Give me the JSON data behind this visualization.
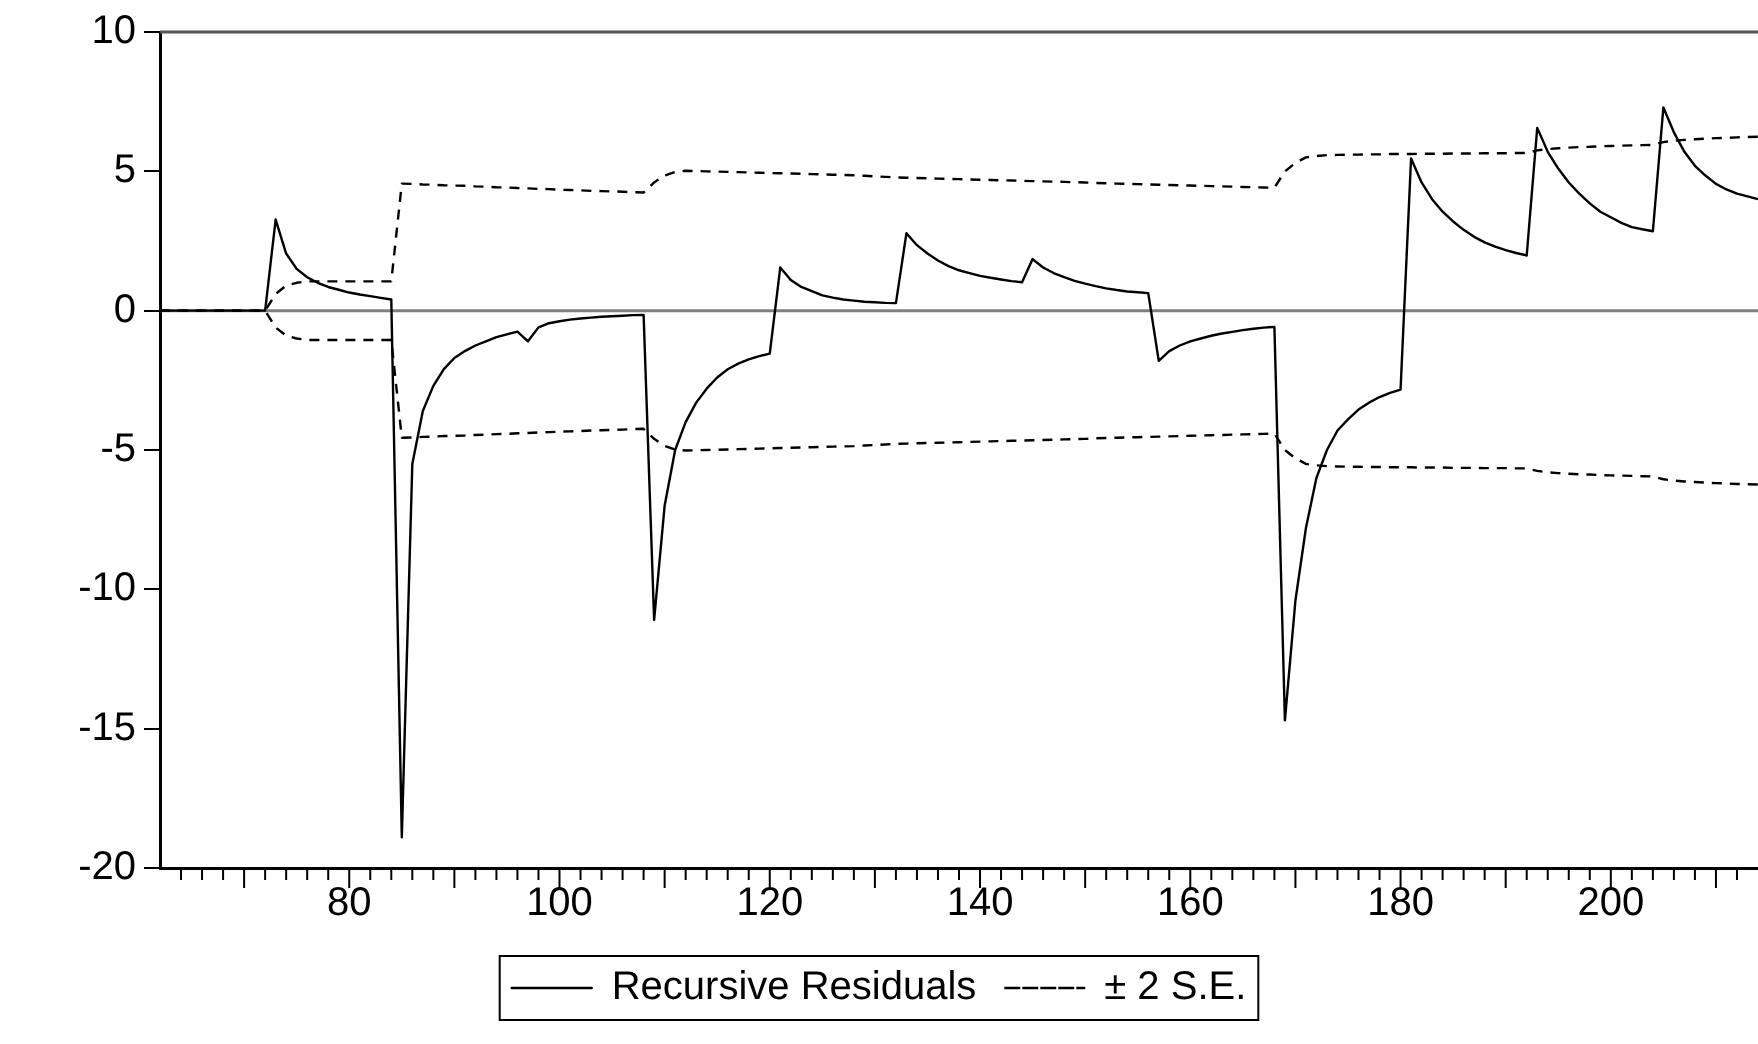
{
  "chart_data": {
    "type": "line",
    "x": [
      62,
      63,
      64,
      65,
      66,
      67,
      68,
      69,
      70,
      71,
      72,
      73,
      74,
      75,
      76,
      77,
      78,
      79,
      80,
      81,
      82,
      83,
      84,
      85,
      86,
      87,
      88,
      89,
      90,
      91,
      92,
      93,
      94,
      95,
      96,
      97,
      98,
      99,
      100,
      101,
      102,
      103,
      104,
      105,
      106,
      107,
      108,
      109,
      110,
      111,
      112,
      113,
      114,
      115,
      116,
      117,
      118,
      119,
      120,
      121,
      122,
      123,
      124,
      125,
      126,
      127,
      128,
      129,
      130,
      131,
      132,
      133,
      134,
      135,
      136,
      137,
      138,
      139,
      140,
      141,
      142,
      143,
      144,
      145,
      146,
      147,
      148,
      149,
      150,
      151,
      152,
      153,
      154,
      155,
      156,
      157,
      158,
      159,
      160,
      161,
      162,
      163,
      164,
      165,
      166,
      167,
      168,
      169,
      170,
      171,
      172,
      173,
      174,
      175,
      176,
      177,
      178,
      179,
      180,
      181,
      182,
      183,
      184,
      185,
      186,
      187,
      188,
      189,
      190,
      191,
      192,
      193,
      194,
      195,
      196,
      197,
      198,
      199,
      200,
      201,
      202,
      203,
      204,
      205,
      206,
      207,
      208,
      209,
      210,
      211,
      212,
      213,
      214
    ],
    "series": [
      {
        "name": "Recursive Residuals",
        "color": "#000000",
        "line_style": "solid",
        "values": [
          0,
          0,
          0,
          0,
          0,
          0,
          0,
          0,
          0,
          0,
          0,
          3.27,
          2.05,
          1.5,
          1.2,
          1.0,
          0.85,
          0.75,
          0.65,
          0.58,
          0.52,
          0.46,
          0.4,
          -18.9,
          -5.5,
          -3.6,
          -2.7,
          -2.1,
          -1.7,
          -1.45,
          -1.25,
          -1.1,
          -0.95,
          -0.85,
          -0.75,
          -1.1,
          -0.6,
          -0.45,
          -0.38,
          -0.32,
          -0.28,
          -0.25,
          -0.22,
          -0.2,
          -0.18,
          -0.16,
          -0.15,
          -11.1,
          -7.0,
          -5.0,
          -4.0,
          -3.3,
          -2.8,
          -2.4,
          -2.1,
          -1.9,
          -1.75,
          -1.63,
          -1.54,
          1.55,
          1.1,
          0.85,
          0.7,
          0.55,
          0.47,
          0.4,
          0.36,
          0.32,
          0.3,
          0.28,
          0.27,
          2.78,
          2.35,
          2.05,
          1.8,
          1.6,
          1.45,
          1.35,
          1.25,
          1.18,
          1.12,
          1.06,
          1.02,
          1.85,
          1.55,
          1.35,
          1.2,
          1.07,
          0.97,
          0.88,
          0.8,
          0.74,
          0.69,
          0.66,
          0.63,
          -1.8,
          -1.45,
          -1.25,
          -1.1,
          -1.0,
          -0.9,
          -0.82,
          -0.76,
          -0.7,
          -0.65,
          -0.61,
          -0.58,
          -14.7,
          -10.4,
          -7.8,
          -6.0,
          -5.0,
          -4.3,
          -3.9,
          -3.55,
          -3.3,
          -3.1,
          -2.95,
          -2.83,
          5.46,
          4.6,
          4.0,
          3.55,
          3.2,
          2.9,
          2.65,
          2.45,
          2.3,
          2.17,
          2.07,
          1.98,
          6.56,
          5.7,
          5.1,
          4.6,
          4.2,
          3.85,
          3.55,
          3.35,
          3.15,
          3.0,
          2.92,
          2.85,
          7.29,
          6.4,
          5.7,
          5.2,
          4.85,
          4.55,
          4.35,
          4.2,
          4.1,
          4.0
        ]
      },
      {
        "name": "± 2 S.E.",
        "color": "#000000",
        "line_style": "dashed",
        "values": [
          0,
          0,
          0,
          0,
          0,
          0,
          0,
          0,
          0,
          0,
          0,
          0.6,
          0.9,
          1.0,
          1.05,
          1.05,
          1.05,
          1.05,
          1.05,
          1.05,
          1.05,
          1.05,
          1.05,
          4.56,
          4.55,
          4.53,
          4.52,
          4.5,
          4.49,
          4.48,
          4.46,
          4.45,
          4.43,
          4.42,
          4.4,
          4.39,
          4.37,
          4.36,
          4.34,
          4.33,
          4.32,
          4.3,
          4.29,
          4.28,
          4.27,
          4.25,
          4.24,
          4.6,
          4.85,
          4.98,
          5.02,
          5.01,
          5.0,
          4.99,
          4.98,
          4.97,
          4.96,
          4.95,
          4.94,
          4.93,
          4.92,
          4.91,
          4.9,
          4.89,
          4.88,
          4.87,
          4.86,
          4.84,
          4.82,
          4.8,
          4.78,
          4.77,
          4.76,
          4.75,
          4.74,
          4.73,
          4.72,
          4.71,
          4.7,
          4.69,
          4.68,
          4.67,
          4.66,
          4.65,
          4.64,
          4.63,
          4.62,
          4.61,
          4.6,
          4.58,
          4.57,
          4.56,
          4.55,
          4.54,
          4.53,
          4.52,
          4.51,
          4.5,
          4.49,
          4.48,
          4.47,
          4.46,
          4.45,
          4.44,
          4.43,
          4.42,
          4.41,
          5.0,
          5.3,
          5.5,
          5.55,
          5.58,
          5.59,
          5.6,
          5.6,
          5.61,
          5.61,
          5.62,
          5.62,
          5.62,
          5.63,
          5.63,
          5.63,
          5.64,
          5.64,
          5.64,
          5.65,
          5.65,
          5.65,
          5.66,
          5.66,
          5.75,
          5.8,
          5.83,
          5.85,
          5.87,
          5.88,
          5.9,
          5.91,
          5.92,
          5.93,
          5.94,
          5.95,
          6.05,
          6.1,
          6.13,
          6.15,
          6.17,
          6.19,
          6.2,
          6.22,
          6.23,
          6.24
        ]
      },
      {
        "color": "#000000",
        "line_style": "dashed",
        "values": [
          0,
          0,
          0,
          0,
          0,
          0,
          0,
          0,
          0,
          0,
          0,
          -0.6,
          -0.9,
          -1.0,
          -1.05,
          -1.05,
          -1.05,
          -1.05,
          -1.05,
          -1.05,
          -1.05,
          -1.05,
          -1.05,
          -4.56,
          -4.55,
          -4.53,
          -4.52,
          -4.5,
          -4.49,
          -4.48,
          -4.46,
          -4.45,
          -4.43,
          -4.42,
          -4.4,
          -4.39,
          -4.37,
          -4.36,
          -4.34,
          -4.33,
          -4.32,
          -4.3,
          -4.29,
          -4.28,
          -4.27,
          -4.25,
          -4.24,
          -4.6,
          -4.85,
          -4.98,
          -5.02,
          -5.01,
          -5.0,
          -4.99,
          -4.98,
          -4.97,
          -4.96,
          -4.95,
          -4.94,
          -4.93,
          -4.92,
          -4.91,
          -4.9,
          -4.89,
          -4.88,
          -4.87,
          -4.86,
          -4.84,
          -4.82,
          -4.8,
          -4.78,
          -4.77,
          -4.76,
          -4.75,
          -4.74,
          -4.73,
          -4.72,
          -4.71,
          -4.7,
          -4.69,
          -4.68,
          -4.67,
          -4.66,
          -4.65,
          -4.64,
          -4.63,
          -4.62,
          -4.61,
          -4.6,
          -4.58,
          -4.57,
          -4.56,
          -4.55,
          -4.54,
          -4.53,
          -4.52,
          -4.51,
          -4.5,
          -4.49,
          -4.48,
          -4.47,
          -4.46,
          -4.45,
          -4.44,
          -4.43,
          -4.42,
          -4.41,
          -5.0,
          -5.3,
          -5.5,
          -5.55,
          -5.58,
          -5.59,
          -5.6,
          -5.6,
          -5.61,
          -5.61,
          -5.62,
          -5.62,
          -5.62,
          -5.63,
          -5.63,
          -5.63,
          -5.64,
          -5.64,
          -5.64,
          -5.65,
          -5.65,
          -5.65,
          -5.66,
          -5.66,
          -5.75,
          -5.8,
          -5.83,
          -5.85,
          -5.87,
          -5.88,
          -5.9,
          -5.91,
          -5.92,
          -5.93,
          -5.94,
          -5.95,
          -6.05,
          -6.1,
          -6.13,
          -6.15,
          -6.17,
          -6.19,
          -6.2,
          -6.22,
          -6.23,
          -6.24
        ]
      }
    ],
    "xlim": [
      62,
      214
    ],
    "xticks": [
      {
        "value": 64,
        "label": null
      },
      {
        "value": 66,
        "label": null
      },
      {
        "value": 68,
        "label": null
      },
      {
        "value": 70,
        "label": null
      },
      {
        "value": 72,
        "label": null
      },
      {
        "value": 74,
        "label": null
      },
      {
        "value": 76,
        "label": null
      },
      {
        "value": 78,
        "label": null
      },
      80,
      {
        "value": 82,
        "label": null
      },
      {
        "value": 84,
        "label": null
      },
      {
        "value": 86,
        "label": null
      },
      {
        "value": 88,
        "label": null
      },
      {
        "value": 90,
        "label": null
      },
      {
        "value": 92,
        "label": null
      },
      {
        "value": 94,
        "label": null
      },
      {
        "value": 96,
        "label": null
      },
      {
        "value": 98,
        "label": null
      },
      100,
      {
        "value": 102,
        "label": null
      },
      {
        "value": 104,
        "label": null
      },
      {
        "value": 106,
        "label": null
      },
      {
        "value": 108,
        "label": null
      },
      {
        "value": 110,
        "label": null
      },
      {
        "value": 112,
        "label": null
      },
      {
        "value": 114,
        "label": null
      },
      {
        "value": 116,
        "label": null
      },
      {
        "value": 118,
        "label": null
      },
      120,
      {
        "value": 122,
        "label": null
      },
      {
        "value": 124,
        "label": null
      },
      {
        "value": 126,
        "label": null
      },
      {
        "value": 128,
        "label": null
      },
      {
        "value": 130,
        "label": null
      },
      {
        "value": 132,
        "label": null
      },
      {
        "value": 134,
        "label": null
      },
      {
        "value": 136,
        "label": null
      },
      {
        "value": 138,
        "label": null
      },
      140,
      {
        "value": 142,
        "label": null
      },
      {
        "value": 144,
        "label": null
      },
      {
        "value": 146,
        "label": null
      },
      {
        "value": 148,
        "label": null
      },
      {
        "value": 150,
        "label": null
      },
      {
        "value": 152,
        "label": null
      },
      {
        "value": 154,
        "label": null
      },
      {
        "value": 156,
        "label": null
      },
      {
        "value": 158,
        "label": null
      },
      160,
      {
        "value": 162,
        "label": null
      },
      {
        "value": 164,
        "label": null
      },
      {
        "value": 166,
        "label": null
      },
      {
        "value": 168,
        "label": null
      },
      {
        "value": 170,
        "label": null
      },
      {
        "value": 172,
        "label": null
      },
      {
        "value": 174,
        "label": null
      },
      {
        "value": 176,
        "label": null
      },
      {
        "value": 178,
        "label": null
      },
      180,
      {
        "value": 182,
        "label": null
      },
      {
        "value": 184,
        "label": null
      },
      {
        "value": 186,
        "label": null
      },
      {
        "value": 188,
        "label": null
      },
      {
        "value": 190,
        "label": null
      },
      {
        "value": 192,
        "label": null
      },
      {
        "value": 194,
        "label": null
      },
      {
        "value": 196,
        "label": null
      },
      {
        "value": 198,
        "label": null
      },
      200,
      {
        "value": 202,
        "label": null
      },
      {
        "value": 204,
        "label": null
      },
      {
        "value": 206,
        "label": null
      },
      {
        "value": 208,
        "label": null
      },
      {
        "value": 210,
        "label": null
      },
      {
        "value": 212,
        "label": null
      }
    ],
    "ylim": [
      -20,
      10
    ],
    "yticks": [
      -20,
      -15,
      -10,
      -5,
      0,
      5,
      10
    ],
    "ref_lines": [
      {
        "axis": "y",
        "value": 0,
        "color": "#808080"
      }
    ],
    "legend": "bottom",
    "marker": "none",
    "grid": false
  }
}
